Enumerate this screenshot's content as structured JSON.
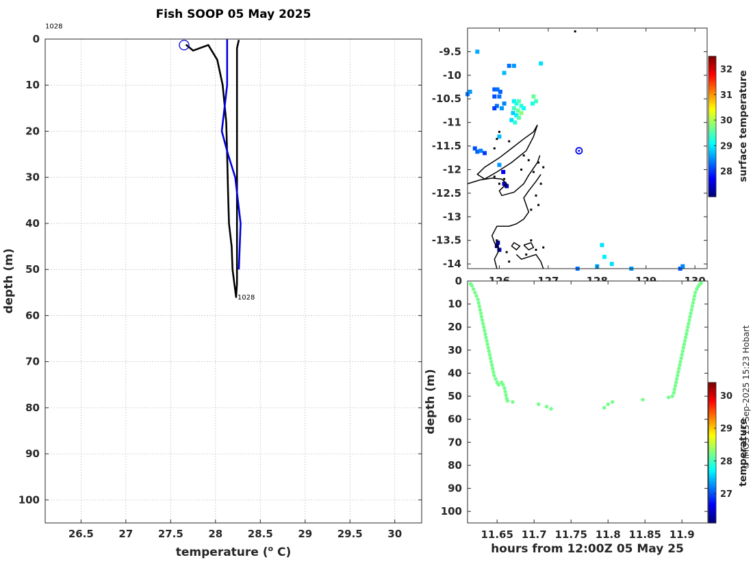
{
  "title": "Fish SOOP 05 May 2025",
  "credit": "© IMOS 15-Sep-2025 15:23 Hobart",
  "chart_data": [
    {
      "type": "line",
      "xlabel": "temperature (o C)",
      "xlabel_main": "temperature (",
      "xlabel_sup": "o",
      "xlabel_end": " C)",
      "ylabel": "depth (m)",
      "xlim": [
        26.1,
        30.3
      ],
      "ylim": [
        0,
        105
      ],
      "y_reversed": true,
      "grid": true,
      "x_ticks": [
        26.5,
        27,
        27.5,
        28,
        28.5,
        29,
        29.5,
        30
      ],
      "x_tick_labels": [
        "26.5",
        "27",
        "27.5",
        "28",
        "28.5",
        "29",
        "29.5",
        "30"
      ],
      "y_ticks": [
        0,
        10,
        20,
        30,
        40,
        50,
        60,
        70,
        80,
        90,
        100
      ],
      "y_tick_labels": [
        "0",
        "10",
        "20",
        "30",
        "40",
        "50",
        "60",
        "70",
        "80",
        "90",
        "100"
      ],
      "annotations": [
        {
          "text": "1028",
          "x": 26.1,
          "y": -2.3
        },
        {
          "text": "1028",
          "x": 28.23,
          "y": 56.1
        }
      ],
      "marker": {
        "type": "open-circle",
        "x": 27.65,
        "y": 1.3
      },
      "series": [
        {
          "color": "#000000",
          "points": [
            [
              27.67,
              1.2
            ],
            [
              27.75,
              2.5
            ],
            [
              27.92,
              1.3
            ],
            [
              28.02,
              4.5
            ],
            [
              28.08,
              10
            ],
            [
              28.12,
              18
            ],
            [
              28.13,
              25
            ],
            [
              28.14,
              33
            ],
            [
              28.15,
              40
            ],
            [
              28.18,
              45
            ],
            [
              28.19,
              50
            ],
            [
              28.21,
              53
            ],
            [
              28.23,
              56
            ],
            [
              28.24,
              53
            ],
            [
              28.24,
              50
            ],
            [
              28.24,
              40
            ],
            [
              28.24,
              30
            ],
            [
              28.24,
              20
            ],
            [
              28.24,
              10
            ],
            [
              28.24,
              2
            ],
            [
              28.26,
              0.2
            ]
          ]
        },
        {
          "color": "#0000dd",
          "points": [
            [
              28.13,
              0
            ],
            [
              28.13,
              10
            ],
            [
              28.07,
              20
            ],
            [
              28.14,
              25
            ],
            [
              28.22,
              30
            ],
            [
              28.28,
              40
            ],
            [
              28.26,
              50
            ]
          ]
        }
      ]
    },
    {
      "type": "heatmap",
      "xlim": [
        125.35,
        130.25
      ],
      "ylim": [
        -14.1,
        -9.0
      ],
      "x_ticks": [
        126,
        127,
        128,
        129,
        130
      ],
      "x_tick_labels": [
        "126",
        "127",
        "128",
        "129",
        "130"
      ],
      "y_ticks": [
        -9.5,
        -10,
        -10.5,
        -11,
        -11.5,
        -12,
        -12.5,
        -13,
        -13.5,
        -14
      ],
      "y_tick_labels": [
        "-9.5",
        "-10",
        "-10.5",
        "-11",
        "-11.5",
        "-12",
        "-12.5",
        "-13",
        "-13.5",
        "-14"
      ],
      "colorbar": {
        "label": "surface temperature",
        "min": 27,
        "max": 32.5,
        "ticks": [
          28,
          29,
          30,
          31,
          32
        ]
      },
      "marker": {
        "type": "open-circle",
        "x": 127.63,
        "y": -11.6
      },
      "cells": [
        [
          125.9,
          -10.3,
          28.2
        ],
        [
          125.96,
          -10.3,
          28.3
        ],
        [
          126.02,
          -10.35,
          28.2
        ],
        [
          125.9,
          -10.45,
          28.1
        ],
        [
          126.0,
          -10.45,
          28.3
        ],
        [
          126.3,
          -10.55,
          29.0
        ],
        [
          126.35,
          -10.6,
          29.2
        ],
        [
          126.4,
          -10.55,
          29.5
        ],
        [
          126.45,
          -10.65,
          29.3
        ],
        [
          126.3,
          -10.7,
          29.4
        ],
        [
          126.38,
          -10.75,
          29.6
        ],
        [
          126.45,
          -10.8,
          29.8
        ],
        [
          126.35,
          -10.85,
          29.0
        ],
        [
          126.4,
          -10.9,
          29.5
        ],
        [
          126.28,
          -10.8,
          28.8
        ],
        [
          126.5,
          -10.7,
          29.1
        ],
        [
          126.25,
          -10.95,
          28.9
        ],
        [
          126.32,
          -11.0,
          29.3
        ],
        [
          126.7,
          -10.45,
          29.6
        ],
        [
          126.75,
          -10.55,
          29.4
        ],
        [
          126.68,
          -10.6,
          29.2
        ],
        [
          125.95,
          -10.65,
          28.3
        ],
        [
          125.9,
          -10.7,
          28.0
        ],
        [
          126.05,
          -10.7,
          28.5
        ],
        [
          126.1,
          -10.6,
          28.4
        ],
        [
          125.35,
          -10.4,
          28.3
        ],
        [
          125.4,
          -10.35,
          28.5
        ],
        [
          125.5,
          -11.55,
          28.1
        ],
        [
          125.55,
          -11.62,
          28.2
        ],
        [
          125.62,
          -11.6,
          28.4
        ],
        [
          125.7,
          -11.65,
          28.0
        ],
        [
          126.0,
          -11.3,
          28.7
        ],
        [
          126.0,
          -11.9,
          28.5
        ],
        [
          126.08,
          -12.05,
          27.6
        ],
        [
          126.15,
          -12.35,
          27.2
        ],
        [
          126.1,
          -12.3,
          27.4
        ],
        [
          125.97,
          -13.55,
          27.1
        ],
        [
          125.95,
          -13.62,
          26.9
        ],
        [
          126.0,
          -13.7,
          27.3
        ],
        [
          126.2,
          -9.8,
          28.3
        ],
        [
          125.55,
          -9.5,
          28.6
        ],
        [
          126.85,
          -9.75,
          28.9
        ],
        [
          126.1,
          -9.95,
          28.7
        ],
        [
          126.3,
          -9.8,
          28.5
        ],
        [
          128.1,
          -13.6,
          28.9
        ],
        [
          128.15,
          -13.85,
          29.0
        ],
        [
          128.3,
          -14.0,
          28.9
        ],
        [
          128.0,
          -14.05,
          28.6
        ],
        [
          127.6,
          -14.1,
          28.3
        ],
        [
          129.7,
          -14.1,
          28.2
        ],
        [
          129.75,
          -14.05,
          28.4
        ],
        [
          128.7,
          -14.1,
          28.5
        ]
      ],
      "coast_paths": [
        [
          [
            126.78,
            -11.05
          ],
          [
            126.7,
            -11.2
          ],
          [
            126.5,
            -11.35
          ],
          [
            126.25,
            -11.55
          ],
          [
            126.0,
            -11.75
          ],
          [
            125.7,
            -11.95
          ],
          [
            125.55,
            -12.1
          ],
          [
            125.7,
            -12.2
          ],
          [
            125.95,
            -12.05
          ],
          [
            126.25,
            -11.85
          ],
          [
            126.55,
            -11.6
          ],
          [
            126.7,
            -11.3
          ],
          [
            126.78,
            -11.05
          ]
        ],
        [
          [
            125.35,
            -12.3
          ],
          [
            125.6,
            -12.22
          ],
          [
            125.85,
            -12.18
          ],
          [
            126.05,
            -12.2
          ],
          [
            126.15,
            -12.3
          ],
          [
            126.0,
            -12.45
          ],
          [
            126.05,
            -12.55
          ],
          [
            126.3,
            -12.48
          ],
          [
            126.5,
            -12.3
          ],
          [
            126.6,
            -12.12
          ],
          [
            126.78,
            -11.85
          ],
          [
            126.83,
            -11.7
          ]
        ],
        [
          [
            126.85,
            -12.1
          ],
          [
            126.75,
            -12.25
          ],
          [
            126.6,
            -12.45
          ],
          [
            126.5,
            -12.6
          ],
          [
            126.55,
            -12.75
          ],
          [
            126.6,
            -12.9
          ],
          [
            126.5,
            -13.05
          ],
          [
            126.35,
            -13.15
          ],
          [
            126.2,
            -13.2
          ],
          [
            125.95,
            -13.2
          ],
          [
            125.85,
            -13.4
          ],
          [
            125.9,
            -13.55
          ],
          [
            126.0,
            -13.7
          ],
          [
            125.9,
            -13.9
          ],
          [
            125.95,
            -14.1
          ]
        ],
        [
          [
            126.35,
            -13.8
          ],
          [
            126.45,
            -13.9
          ],
          [
            126.6,
            -13.85
          ],
          [
            126.75,
            -13.8
          ],
          [
            126.85,
            -13.95
          ],
          [
            126.9,
            -14.1
          ]
        ],
        [
          [
            126.5,
            -13.6
          ],
          [
            126.6,
            -13.7
          ],
          [
            126.7,
            -13.65
          ],
          [
            126.65,
            -13.55
          ],
          [
            126.5,
            -13.6
          ]
        ],
        [
          [
            126.25,
            -13.62
          ],
          [
            126.35,
            -13.7
          ],
          [
            126.42,
            -13.62
          ],
          [
            126.3,
            -13.55
          ],
          [
            126.25,
            -13.62
          ]
        ]
      ],
      "coast_dots": [
        [
          126.0,
          -11.2
        ],
        [
          125.95,
          -11.35
        ],
        [
          126.2,
          -11.4
        ],
        [
          125.9,
          -11.55
        ],
        [
          126.5,
          -11.7
        ],
        [
          126.6,
          -11.8
        ],
        [
          126.8,
          -11.85
        ],
        [
          126.9,
          -11.95
        ],
        [
          126.45,
          -12.0
        ],
        [
          126.7,
          -12.05
        ],
        [
          126.85,
          -12.3
        ],
        [
          126.75,
          -12.55
        ],
        [
          126.8,
          -12.75
        ],
        [
          126.65,
          -12.85
        ],
        [
          126.1,
          -12.2
        ],
        [
          125.9,
          -12.15
        ],
        [
          126.0,
          -12.3
        ],
        [
          126.75,
          -13.7
        ],
        [
          126.9,
          -13.65
        ],
        [
          126.55,
          -13.8
        ],
        [
          126.65,
          -13.5
        ],
        [
          125.95,
          -13.5
        ],
        [
          126.15,
          -13.75
        ],
        [
          126.2,
          -13.95
        ],
        [
          127.55,
          -9.07
        ]
      ]
    },
    {
      "type": "scatter",
      "xlabel": "hours from 12:00Z 05 May 25",
      "ylabel": "depth (m)",
      "xlim": [
        11.61,
        11.935
      ],
      "ylim": [
        0,
        105
      ],
      "y_reversed": true,
      "x_ticks": [
        11.65,
        11.7,
        11.75,
        11.8,
        11.85,
        11.9
      ],
      "x_tick_labels": [
        "11.65",
        "11.7",
        "11.75",
        "11.8",
        "11.85",
        "11.9"
      ],
      "y_ticks": [
        0,
        10,
        20,
        30,
        40,
        50,
        60,
        70,
        80,
        90,
        100
      ],
      "y_tick_labels": [
        "0",
        "10",
        "20",
        "30",
        "40",
        "50",
        "60",
        "70",
        "80",
        "90",
        "100"
      ],
      "colorbar": {
        "label": "temperature",
        "min": 26.1,
        "max": 30.4,
        "ticks": [
          27,
          28,
          29,
          30
        ]
      },
      "point_temperature": 28.2,
      "points": [
        [
          11.614,
          1.2
        ],
        [
          11.616,
          2
        ],
        [
          11.618,
          3.5
        ],
        [
          11.62,
          5
        ],
        [
          11.622,
          6.5
        ],
        [
          11.624,
          8
        ],
        [
          11.625,
          9.5
        ],
        [
          11.626,
          11
        ],
        [
          11.627,
          12.5
        ],
        [
          11.628,
          14
        ],
        [
          11.629,
          15.5
        ],
        [
          11.63,
          17
        ],
        [
          11.631,
          18.5
        ],
        [
          11.632,
          20
        ],
        [
          11.633,
          21.5
        ],
        [
          11.634,
          23
        ],
        [
          11.635,
          24.5
        ],
        [
          11.636,
          26
        ],
        [
          11.637,
          27.5
        ],
        [
          11.638,
          29
        ],
        [
          11.639,
          30.5
        ],
        [
          11.64,
          32
        ],
        [
          11.641,
          33.5
        ],
        [
          11.642,
          35
        ],
        [
          11.643,
          36.5
        ],
        [
          11.644,
          38
        ],
        [
          11.645,
          39.5
        ],
        [
          11.646,
          41
        ],
        [
          11.648,
          42.5
        ],
        [
          11.65,
          44
        ],
        [
          11.652,
          45
        ],
        [
          11.656,
          44
        ],
        [
          11.658,
          45
        ],
        [
          11.66,
          46.5
        ],
        [
          11.661,
          48
        ],
        [
          11.662,
          49.5
        ],
        [
          11.663,
          51
        ],
        [
          11.664,
          52
        ],
        [
          11.671,
          52.5
        ],
        [
          11.706,
          53.5
        ],
        [
          11.717,
          54.5
        ],
        [
          11.723,
          55.5
        ],
        [
          11.795,
          55
        ],
        [
          11.8,
          53.5
        ],
        [
          11.806,
          52.5
        ],
        [
          11.847,
          51.5
        ],
        [
          11.882,
          50.5
        ],
        [
          11.887,
          50
        ],
        [
          11.889,
          48.5
        ],
        [
          11.89,
          47
        ],
        [
          11.891,
          45.5
        ],
        [
          11.892,
          44
        ],
        [
          11.893,
          42.5
        ],
        [
          11.894,
          41
        ],
        [
          11.895,
          39.5
        ],
        [
          11.896,
          38
        ],
        [
          11.897,
          36.5
        ],
        [
          11.898,
          35
        ],
        [
          11.899,
          33.5
        ],
        [
          11.9,
          32
        ],
        [
          11.901,
          30.5
        ],
        [
          11.902,
          29
        ],
        [
          11.903,
          27.5
        ],
        [
          11.904,
          26
        ],
        [
          11.905,
          24.5
        ],
        [
          11.906,
          23
        ],
        [
          11.907,
          21.5
        ],
        [
          11.908,
          20
        ],
        [
          11.909,
          18.5
        ],
        [
          11.91,
          17
        ],
        [
          11.911,
          15.5
        ],
        [
          11.912,
          14
        ],
        [
          11.913,
          12.5
        ],
        [
          11.914,
          11
        ],
        [
          11.915,
          9.5
        ],
        [
          11.916,
          8
        ],
        [
          11.917,
          6.5
        ],
        [
          11.918,
          5
        ],
        [
          11.92,
          3.5
        ],
        [
          11.922,
          2.3
        ],
        [
          11.924,
          1.5
        ],
        [
          11.926,
          0.8
        ]
      ]
    }
  ]
}
